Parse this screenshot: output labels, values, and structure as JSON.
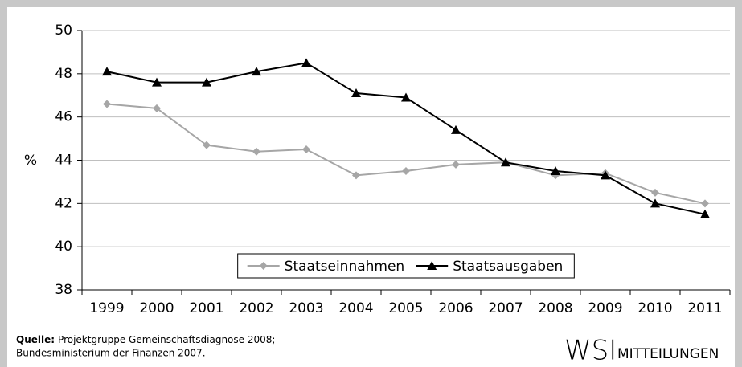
{
  "chart_data": {
    "type": "line",
    "y_label": "%",
    "categories": [
      "1999",
      "2000",
      "2001",
      "2002",
      "2003",
      "2004",
      "2005",
      "2006",
      "2007",
      "2008",
      "2009",
      "2010",
      "2011"
    ],
    "series": [
      {
        "name": "Staatseinnahmen",
        "color": "#a6a6a6",
        "marker": "diamond",
        "values": [
          46.6,
          46.4,
          44.7,
          44.4,
          44.5,
          43.3,
          43.5,
          43.8,
          43.9,
          43.3,
          43.4,
          42.5,
          42.0
        ]
      },
      {
        "name": "Staatsausgaben",
        "color": "#000000",
        "marker": "triangle",
        "values": [
          48.1,
          47.6,
          47.6,
          48.1,
          48.5,
          47.1,
          46.9,
          45.4,
          43.9,
          43.5,
          43.3,
          42.0,
          41.5
        ]
      }
    ],
    "ylim": [
      38,
      50
    ],
    "yticks": [
      38,
      40,
      42,
      44,
      46,
      48,
      50
    ],
    "grid": true,
    "legend": "bottom",
    "source_label": "Quelle:",
    "source_lines": [
      "Projektgruppe Gemeinschaftsdiagnose 2008;",
      "Bundesministerium der Finanzen 2007."
    ],
    "logo": "WSI",
    "logo_sub": "MITTEILUNGEN"
  }
}
